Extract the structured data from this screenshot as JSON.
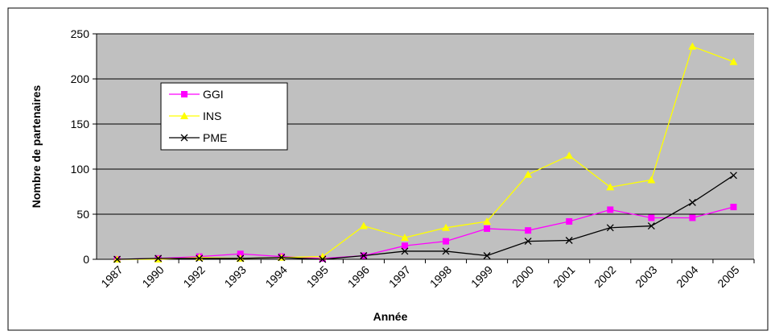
{
  "chart_data": {
    "type": "line",
    "x_label": "Année",
    "y_label": "Nombre de partenaires",
    "categories": [
      "1987",
      "1990",
      "1992",
      "1993",
      "1994",
      "1995",
      "1996",
      "1997",
      "1998",
      "1999",
      "2000",
      "2001",
      "2002",
      "2003",
      "2004",
      "2005"
    ],
    "series": [
      {
        "name": "GGI",
        "color": "#ff00ff",
        "marker": "square",
        "values": [
          0,
          1,
          3,
          6,
          3,
          1,
          4,
          15,
          20,
          34,
          32,
          42,
          55,
          46,
          46,
          58
        ]
      },
      {
        "name": "INS",
        "color": "#ffff00",
        "marker": "triangle",
        "values": [
          0,
          0,
          2,
          1,
          2,
          3,
          37,
          24,
          35,
          42,
          94,
          115,
          80,
          88,
          236,
          219
        ]
      },
      {
        "name": "PME",
        "color": "#000000",
        "marker": "x",
        "values": [
          0,
          1,
          1,
          1,
          2,
          0,
          4,
          9,
          9,
          4,
          20,
          21,
          35,
          37,
          63,
          93
        ]
      }
    ],
    "ylim": [
      0,
      250
    ],
    "yticks": [
      0,
      50,
      100,
      150,
      200,
      250
    ],
    "grid": true,
    "legend": "upper left",
    "plot_background": "#c0c0c0"
  }
}
